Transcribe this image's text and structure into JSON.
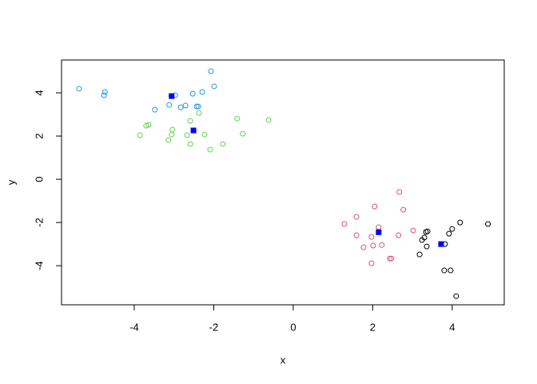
{
  "chart_data": {
    "type": "scatter",
    "xlabel": "x",
    "ylabel": "y",
    "xlim": [
      -5.83,
      5.31
    ],
    "ylim": [
      -5.81,
      5.52
    ],
    "xticks": [
      -4,
      -2,
      0,
      2,
      4
    ],
    "yticks": [
      -4,
      -2,
      0,
      2,
      4
    ],
    "series": [
      {
        "color": "#2297E6",
        "marker": "circle",
        "x": [
          -5.39,
          -4.74,
          -4.76,
          -3.48,
          -3.12,
          -2.97,
          -2.83,
          -2.71,
          -2.53,
          -2.43,
          -2.39,
          -2.29,
          -2.07,
          -1.99
        ],
        "values": [
          4.19,
          4.04,
          3.89,
          3.22,
          3.44,
          3.89,
          3.33,
          3.41,
          3.96,
          3.37,
          3.37,
          4.04,
          5.0,
          4.3
        ]
      },
      {
        "color": "#61D04F",
        "marker": "circle",
        "x": [
          -3.86,
          -3.7,
          -3.64,
          -3.14,
          -3.06,
          -3.04,
          -2.67,
          -2.59,
          -2.37,
          -2.23,
          -2.59,
          -2.09,
          -1.77,
          -1.41,
          -1.27,
          -0.62
        ],
        "values": [
          2.04,
          2.48,
          2.52,
          1.81,
          2.07,
          2.3,
          2.04,
          2.7,
          3.07,
          2.07,
          1.63,
          1.37,
          1.63,
          2.81,
          2.11,
          2.74
        ]
      },
      {
        "color": "#DF536B",
        "marker": "circle",
        "x": [
          1.29,
          1.59,
          1.59,
          2.05,
          1.97,
          2.01,
          1.97,
          2.15,
          2.23,
          1.77,
          2.43,
          2.47,
          2.65,
          2.67,
          2.77,
          3.02
        ],
        "values": [
          -2.07,
          -1.74,
          -2.59,
          -1.26,
          -2.67,
          -3.07,
          -3.89,
          -2.22,
          -3.04,
          -3.15,
          -3.67,
          -3.67,
          -2.59,
          -0.59,
          -1.41,
          -2.37
        ]
      },
      {
        "color": "#000000",
        "marker": "circle",
        "x": [
          3.24,
          3.3,
          3.34,
          3.38,
          3.36,
          3.18,
          3.82,
          3.8,
          3.92,
          3.96,
          4.0,
          4.2,
          4.1,
          4.9
        ],
        "values": [
          -2.81,
          -2.7,
          -2.44,
          -2.41,
          -3.11,
          -3.48,
          -3.0,
          -4.22,
          -2.52,
          -4.22,
          -2.3,
          -2.0,
          -5.41,
          -2.07
        ]
      },
      {
        "color": "#0000FF",
        "marker": "square",
        "x": [
          -3.06,
          -2.51,
          2.15,
          3.72
        ],
        "values": [
          3.85,
          2.26,
          -2.45,
          -3.0
        ]
      }
    ]
  }
}
